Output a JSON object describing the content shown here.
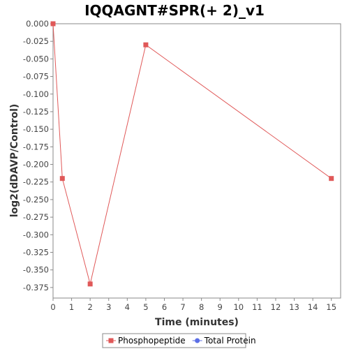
{
  "chart_data": {
    "type": "line",
    "title": "IQQAGNT#SPR(+ 2)_v1",
    "xlabel": "Time (minutes)",
    "ylabel": "log2(dDAVP/Control)",
    "xlim": [
      0,
      15.5
    ],
    "ylim": [
      -0.39,
      0.0
    ],
    "xticks": [
      0,
      1,
      2,
      3,
      4,
      5,
      6,
      7,
      8,
      9,
      10,
      11,
      12,
      13,
      14,
      15
    ],
    "yticks": [
      0.0,
      -0.025,
      -0.05,
      -0.075,
      -0.1,
      -0.125,
      -0.15,
      -0.175,
      -0.2,
      -0.225,
      -0.25,
      -0.275,
      -0.3,
      -0.325,
      -0.35,
      -0.375
    ],
    "ytick_labels": [
      "0.000",
      "-0.025",
      "-0.050",
      "-0.075",
      "-0.100",
      "-0.125",
      "-0.150",
      "-0.175",
      "-0.200",
      "-0.225",
      "-0.250",
      "-0.275",
      "-0.300",
      "-0.325",
      "-0.350",
      "-0.375"
    ],
    "grid": false,
    "legend_position": "bottom",
    "series": [
      {
        "name": "Phosphopeptide",
        "color": "#e05858",
        "marker": "square",
        "x": [
          0,
          0.5,
          2,
          5,
          15
        ],
        "y": [
          0.0,
          -0.22,
          -0.37,
          -0.03,
          -0.22
        ]
      },
      {
        "name": "Total Protein",
        "color": "#5b6ee6",
        "marker": "circle",
        "x": [],
        "y": []
      }
    ]
  }
}
